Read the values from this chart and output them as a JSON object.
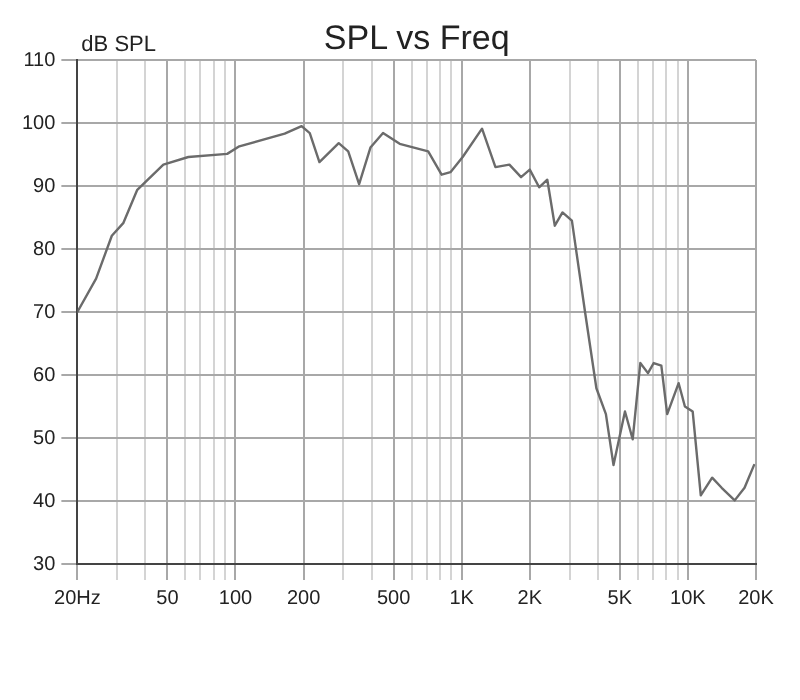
{
  "chart_data": {
    "type": "line",
    "title": "SPL vs Freq",
    "ylabel": "dB SPL",
    "log": "x",
    "x": [
      20,
      24.2,
      28.4,
      31.9,
      36.8,
      48,
      61.9,
      91.9,
      104,
      165,
      196,
      213,
      235,
      286,
      315,
      352,
      395,
      449,
      532,
      711,
      815,
      892,
      1010,
      1230,
      1410,
      1625,
      1830,
      2000,
      2200,
      2390,
      2580,
      2790,
      3070,
      3510,
      3940,
      4340,
      4690,
      5270,
      5700,
      6160,
      6660,
      7060,
      7630,
      8100,
      9100,
      9700,
      10500,
      11400,
      12800,
      14100,
      16100,
      17800,
      19600
    ],
    "series": [
      {
        "color": "#6b6b6b",
        "values": [
          70,
          75.3,
          82.1,
          84.1,
          89.4,
          93.4,
          94.6,
          95.1,
          96.3,
          98.3,
          99.5,
          98.4,
          93.8,
          96.8,
          95.5,
          90.3,
          96.1,
          98.4,
          96.7,
          95.5,
          91.8,
          92.2,
          94.6,
          99.1,
          93,
          93.4,
          91.4,
          92.6,
          89.8,
          91,
          83.7,
          85.8,
          84.5,
          70,
          57.9,
          53.8,
          45.7,
          54.2,
          49.8,
          61.9,
          60.3,
          61.9,
          61.5,
          53.8,
          58.7,
          55,
          54.2,
          40.9,
          43.7,
          42.1,
          40.1,
          42.1,
          45.7
        ]
      }
    ],
    "xlim": [
      20,
      20000
    ],
    "xticks": [
      {
        "value": 20,
        "label": "20Hz"
      },
      {
        "value": 30,
        "label": null
      },
      {
        "value": 40,
        "label": null
      },
      {
        "value": 50,
        "label": "50"
      },
      {
        "value": 60,
        "label": null
      },
      {
        "value": 70,
        "label": null
      },
      {
        "value": 80,
        "label": null
      },
      {
        "value": 90,
        "label": null
      },
      {
        "value": 100,
        "label": "100"
      },
      {
        "value": 200,
        "label": "200"
      },
      {
        "value": 300,
        "label": null
      },
      {
        "value": 400,
        "label": null
      },
      {
        "value": 500,
        "label": "500"
      },
      {
        "value": 600,
        "label": null
      },
      {
        "value": 700,
        "label": null
      },
      {
        "value": 800,
        "label": null
      },
      {
        "value": 900,
        "label": null
      },
      {
        "value": 1000,
        "label": "1K"
      },
      {
        "value": 2000,
        "label": "2K"
      },
      {
        "value": 3000,
        "label": null
      },
      {
        "value": 4000,
        "label": null
      },
      {
        "value": 5000,
        "label": "5K"
      },
      {
        "value": 6000,
        "label": null
      },
      {
        "value": 7000,
        "label": null
      },
      {
        "value": 8000,
        "label": null
      },
      {
        "value": 9000,
        "label": null
      },
      {
        "value": 10000,
        "label": "10K"
      },
      {
        "value": 20000,
        "label": "20K"
      }
    ],
    "ylim": [
      30,
      110
    ],
    "yticks": [
      30,
      40,
      50,
      60,
      70,
      80,
      90,
      100,
      110
    ],
    "grid": true,
    "marker": "none",
    "line_style": "solid",
    "legend": false
  }
}
